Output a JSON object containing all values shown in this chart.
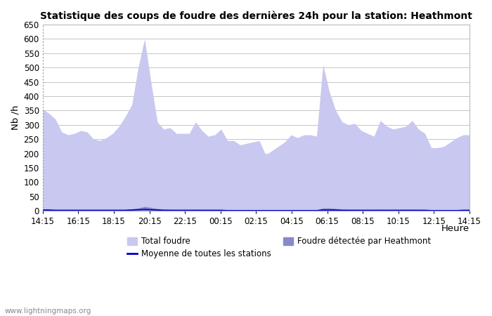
{
  "title": "Statistique des coups de foudre des dernières 24h pour la station: Heathmont",
  "xlabel": "Heure",
  "ylabel": "Nb /h",
  "ylim": [
    0,
    650
  ],
  "yticks": [
    0,
    50,
    100,
    150,
    200,
    250,
    300,
    350,
    400,
    450,
    500,
    550,
    600,
    650
  ],
  "x_tick_labels": [
    "14:15",
    "16:15",
    "18:15",
    "20:15",
    "22:15",
    "00:15",
    "02:15",
    "04:15",
    "06:15",
    "08:15",
    "10:15",
    "12:15",
    "14:15"
  ],
  "total_foudre": [
    355,
    340,
    320,
    275,
    265,
    270,
    280,
    275,
    250,
    245,
    255,
    270,
    295,
    330,
    370,
    500,
    600,
    450,
    310,
    285,
    290,
    270,
    270,
    270,
    310,
    280,
    260,
    265,
    285,
    245,
    245,
    230,
    235,
    240,
    245,
    195,
    210,
    225,
    240,
    265,
    255,
    265,
    265,
    260,
    510,
    415,
    350,
    310,
    300,
    305,
    280,
    270,
    260,
    315,
    295,
    285,
    290,
    295,
    315,
    285,
    270,
    220,
    220,
    225,
    240,
    255,
    265,
    265
  ],
  "foudre_heathmont": [
    5,
    4,
    4,
    3,
    4,
    4,
    4,
    4,
    4,
    4,
    4,
    4,
    4,
    5,
    7,
    10,
    15,
    12,
    8,
    6,
    5,
    4,
    4,
    4,
    5,
    4,
    3,
    4,
    4,
    3,
    3,
    3,
    3,
    3,
    3,
    3,
    3,
    3,
    3,
    3,
    3,
    3,
    3,
    3,
    10,
    10,
    8,
    6,
    5,
    5,
    4,
    4,
    3,
    5,
    4,
    4,
    4,
    5,
    5,
    4,
    4,
    3,
    3,
    3,
    3,
    3,
    4,
    5
  ],
  "moyenne_stations": [
    3,
    3,
    2,
    2,
    2,
    2,
    2,
    2,
    2,
    2,
    2,
    2,
    2,
    2,
    3,
    4,
    5,
    4,
    3,
    2,
    2,
    2,
    2,
    2,
    2,
    2,
    2,
    2,
    2,
    1,
    1,
    1,
    1,
    1,
    1,
    1,
    1,
    1,
    1,
    1,
    1,
    1,
    1,
    1,
    3,
    3,
    3,
    2,
    2,
    2,
    2,
    2,
    2,
    2,
    2,
    2,
    2,
    2,
    2,
    2,
    2,
    1,
    1,
    1,
    1,
    1,
    2,
    2
  ],
  "color_total": "#c8c8f0",
  "color_heathmont": "#8888cc",
  "color_moyenne": "#0000cc",
  "background_color": "#ffffff",
  "grid_color": "#bbbbbb",
  "title_fontsize": 10,
  "watermark": "www.lightningmaps.org",
  "n_points": 68,
  "n_ticks": 13
}
